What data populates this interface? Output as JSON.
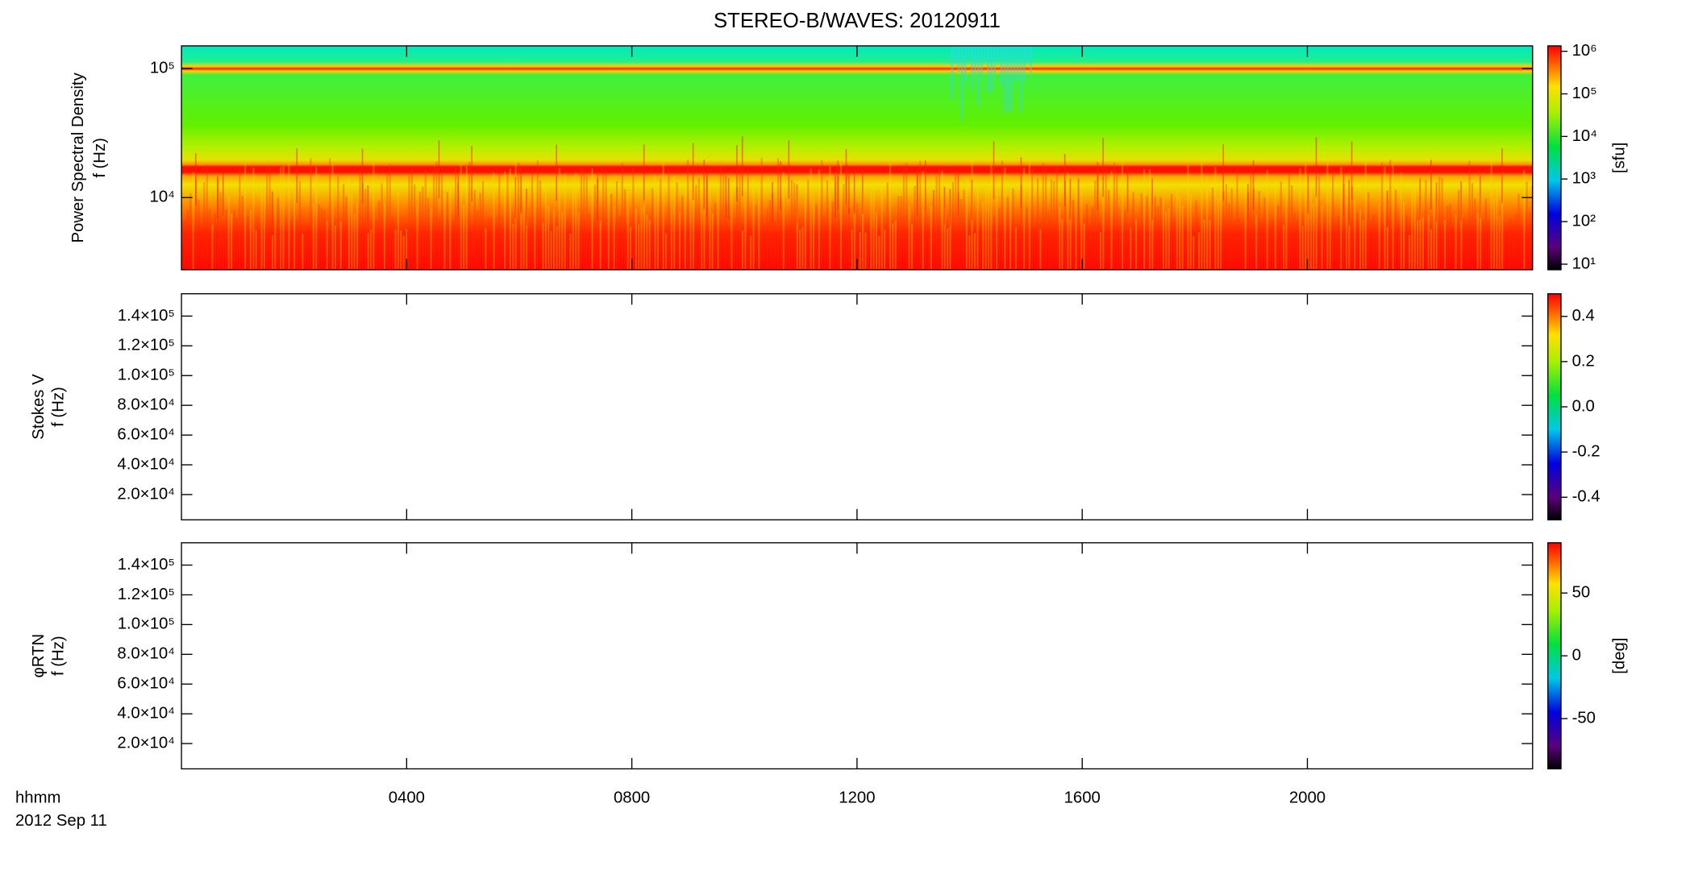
{
  "title": "STEREO-B/WAVES: 20120911",
  "x_axis": {
    "label": "hhmm",
    "date": "2012 Sep 11",
    "xlim": [
      0,
      24
    ],
    "xticks": [
      {
        "value": 4,
        "label": "0400"
      },
      {
        "value": 8,
        "label": "0800"
      },
      {
        "value": 12,
        "label": "1200"
      },
      {
        "value": 16,
        "label": "1600"
      },
      {
        "value": 20,
        "label": "2000"
      }
    ]
  },
  "chart_data": [
    {
      "type": "heatmap",
      "ylabel": [
        "Power Spectral Density",
        "f (Hz)"
      ],
      "yscale": "log",
      "ylim": [
        2760,
        150000
      ],
      "yticks": [
        {
          "value": 10000,
          "label": "10⁴"
        },
        {
          "value": 100000,
          "label": "10⁵"
        }
      ],
      "colorbar": {
        "label": "[sfu]",
        "scale": "log",
        "lim": [
          7.4,
          1340000
        ],
        "ticks": [
          {
            "value": 10,
            "label": "10¹"
          },
          {
            "value": 100,
            "label": "10²"
          },
          {
            "value": 1000,
            "label": "10³"
          },
          {
            "value": 10000,
            "label": "10⁴"
          },
          {
            "value": 100000,
            "label": "10⁵"
          },
          {
            "value": 1000000,
            "label": "10⁶"
          }
        ]
      }
    },
    {
      "type": "heatmap",
      "empty": true,
      "ylabel": [
        "Stokes V",
        "f (Hz)"
      ],
      "yscale": "linear",
      "ylim": [
        3000,
        155000
      ],
      "yticks": [
        {
          "value": 20000,
          "label": "2.0×10⁴"
        },
        {
          "value": 40000,
          "label": "4.0×10⁴"
        },
        {
          "value": 60000,
          "label": "6.0×10⁴"
        },
        {
          "value": 80000,
          "label": "8.0×10⁴"
        },
        {
          "value": 100000,
          "label": "1.0×10⁵"
        },
        {
          "value": 120000,
          "label": "1.2×10⁵"
        },
        {
          "value": 140000,
          "label": "1.4×10⁵"
        }
      ],
      "colorbar": {
        "scale": "linear",
        "lim": [
          -0.5,
          0.5
        ],
        "ticks": [
          -0.4,
          -0.2,
          {
            "value": 0,
            "label": "0.0"
          },
          0.2,
          0.4
        ]
      }
    },
    {
      "type": "heatmap",
      "empty": true,
      "ylabel": [
        "φRTN",
        "f (Hz)"
      ],
      "yscale": "linear",
      "ylim": [
        3000,
        155000
      ],
      "yticks": [
        {
          "value": 20000,
          "label": "2.0×10⁴"
        },
        {
          "value": 40000,
          "label": "4.0×10⁴"
        },
        {
          "value": 60000,
          "label": "6.0×10⁴"
        },
        {
          "value": 80000,
          "label": "8.0×10⁴"
        },
        {
          "value": 100000,
          "label": "1.0×10⁵"
        },
        {
          "value": 120000,
          "label": "1.2×10⁵"
        },
        {
          "value": 140000,
          "label": "1.4×10⁵"
        }
      ],
      "colorbar": {
        "label": "[deg]",
        "scale": "linear",
        "lim": [
          -90,
          90
        ],
        "ticks": [
          -50,
          0,
          50
        ]
      }
    }
  ]
}
